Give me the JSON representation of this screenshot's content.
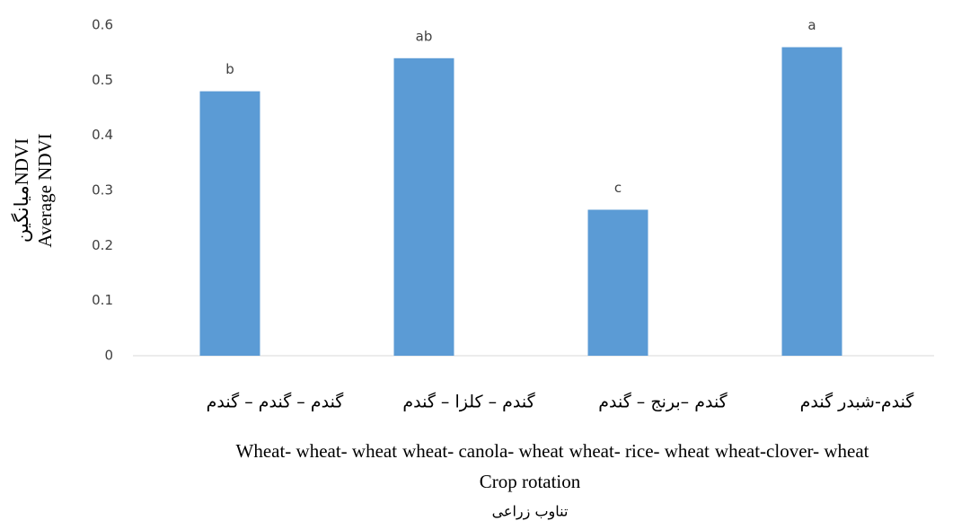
{
  "chart_data": {
    "type": "bar",
    "categories": [
      "گندم – گندم – گندم",
      "گندم – کلزا – گندم",
      "گندم –برنج – گندم",
      "گندم-شبدر گندم"
    ],
    "english_categories": [
      "Wheat- wheat- wheat",
      "wheat- canola- wheat",
      "wheat- rice- wheat",
      "wheat-clover- wheat"
    ],
    "values": [
      0.48,
      0.54,
      0.265,
      0.56
    ],
    "significance_letters": [
      "b",
      "ab",
      "c",
      "a"
    ],
    "color": "#5b9bd5",
    "ylim": [
      0,
      0.6
    ],
    "yticks": [
      0,
      0.1,
      0.2,
      0.3,
      0.4,
      0.5,
      0.6
    ],
    "y_label_fa": "میانگینNDVI",
    "y_label": "Average NDVI",
    "x_label": "Crop rotation",
    "x_label_fa": "تناوب زراعی"
  }
}
